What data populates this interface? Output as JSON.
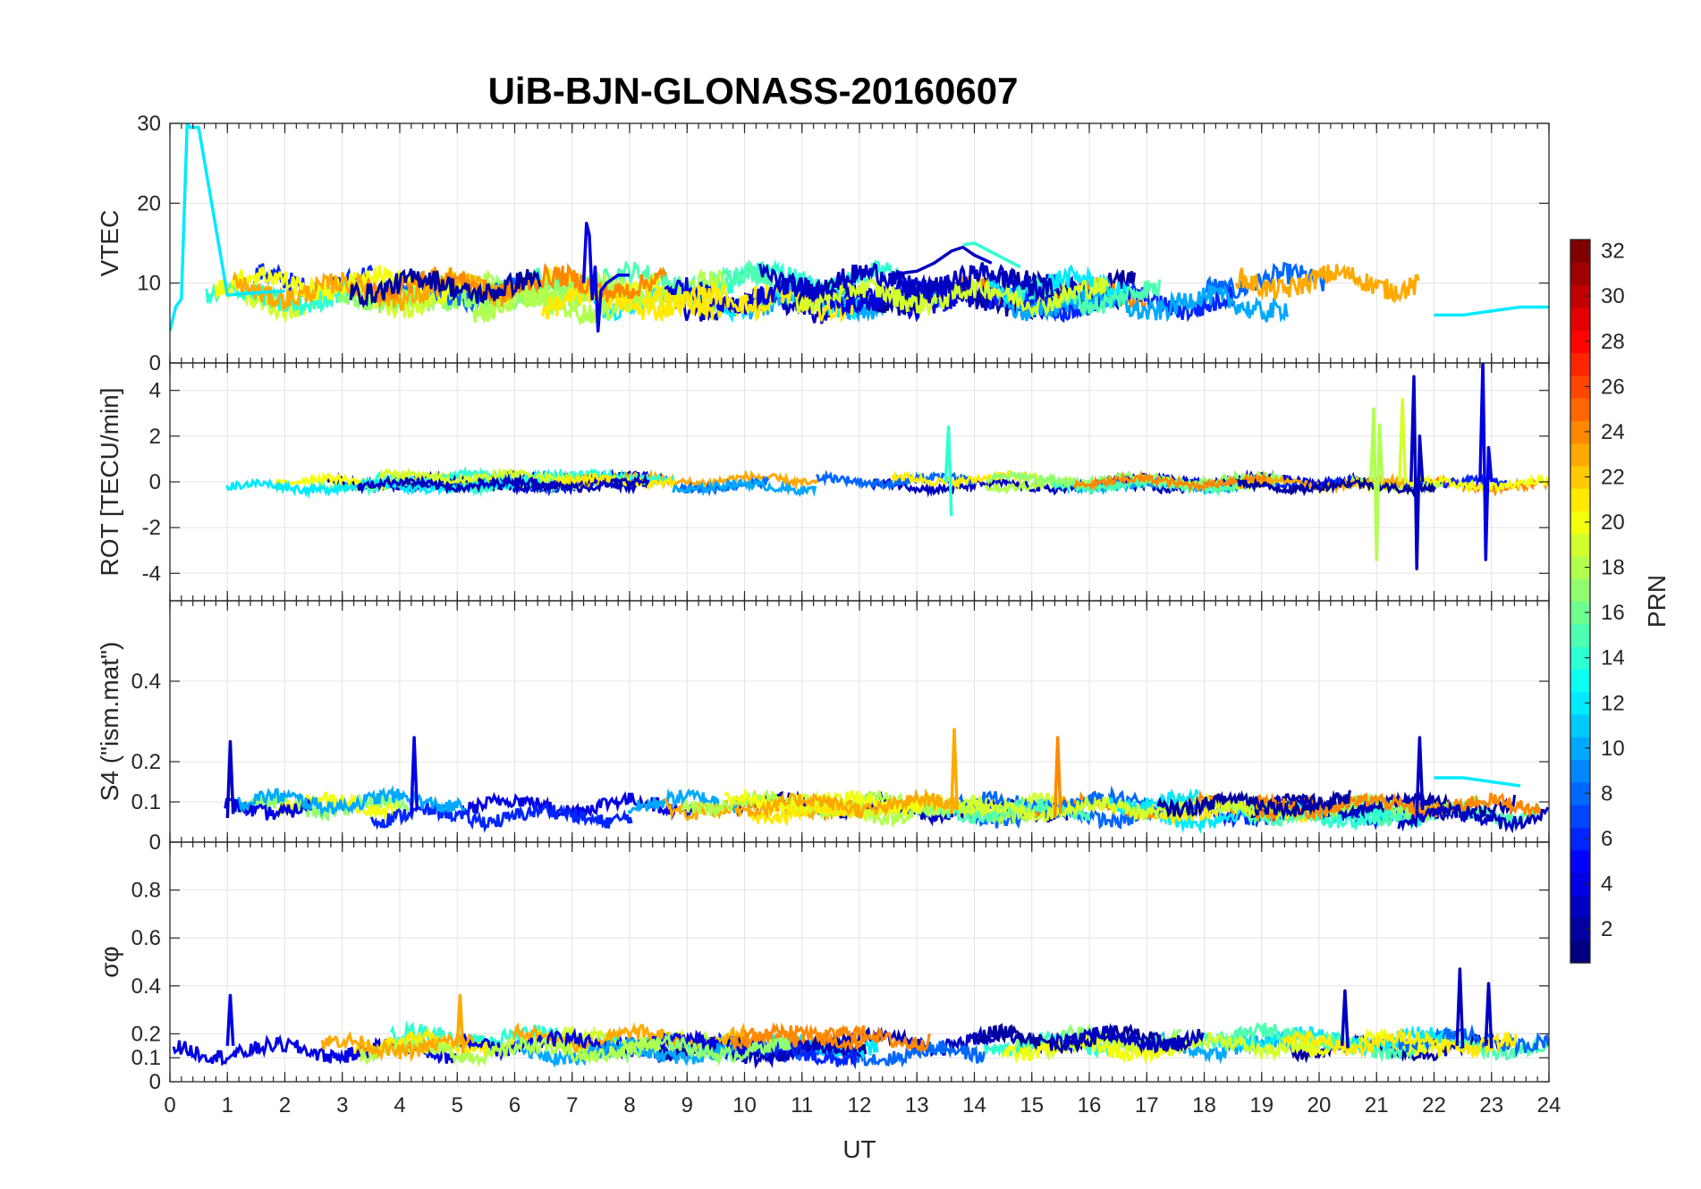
{
  "chart_data": {
    "type": "line",
    "title": "UiB-BJN-GLONASS-20160607",
    "xlabel": "UT",
    "xlim": [
      0,
      24
    ],
    "x_ticks": [
      "0",
      "1",
      "2",
      "3",
      "4",
      "5",
      "6",
      "7",
      "8",
      "9",
      "10",
      "11",
      "12",
      "13",
      "14",
      "15",
      "16",
      "17",
      "18",
      "19",
      "20",
      "21",
      "22",
      "23",
      "24"
    ],
    "grid": true,
    "colorbar": {
      "label": "PRN",
      "range": [
        1,
        32
      ],
      "ticks": [
        "2",
        "4",
        "6",
        "8",
        "10",
        "12",
        "14",
        "16",
        "18",
        "20",
        "22",
        "24",
        "26",
        "28",
        "30",
        "32"
      ],
      "colormap": "jet"
    },
    "panels": [
      {
        "id": "vtec",
        "ylabel": "VTEC",
        "ylim": [
          0,
          30
        ],
        "y_ticks": [
          "0",
          "10",
          "20",
          "30"
        ],
        "y_tick_values": [
          0,
          10,
          20,
          30
        ],
        "baseline_range": [
          6,
          12
        ],
        "series": [
          {
            "prn": 12,
            "x": [
              0,
              0.1,
              0.2,
              0.3,
              0.35,
              0.5,
              1,
              1.5,
              2
            ],
            "y": [
              4,
              7,
              8,
              30,
              29.5,
              29.5,
              8.5,
              8.8,
              9
            ]
          },
          {
            "prn": 4,
            "x": [
              7.2,
              7.25,
              7.3,
              7.35,
              7.4,
              7.45,
              7.5,
              7.6,
              7.8,
              8.0
            ],
            "y": [
              10,
              17.5,
              16,
              8,
              12,
              4,
              9,
              10,
              11,
              11
            ]
          },
          {
            "prn": 3,
            "x": [
              12.5,
              13,
              13.3,
              13.6,
              13.8,
              14.0,
              14.3
            ],
            "y": [
              11,
              11.5,
              12.5,
              14,
              14.5,
              13.5,
              12.5
            ]
          },
          {
            "prn": 14,
            "x": [
              13.8,
              14.0,
              14.4,
              14.8
            ],
            "y": [
              14.8,
              15,
              13.5,
              12
            ]
          },
          {
            "prn": 12,
            "x": [
              22,
              22.5,
              23,
              23.5,
              24
            ],
            "y": [
              6,
              6,
              6.5,
              7,
              7
            ]
          }
        ]
      },
      {
        "id": "rot",
        "ylabel": "ROT [TECU/min]",
        "ylim": [
          -5.2,
          5.2
        ],
        "y_ticks": [
          "-4",
          "-2",
          "0",
          "2",
          "4"
        ],
        "y_tick_values": [
          -4,
          -2,
          0,
          2,
          4
        ],
        "baseline_range": [
          -0.4,
          0.4
        ],
        "series": [
          {
            "prn": 3,
            "x": [
              21.6,
              21.65,
              21.7,
              21.75,
              21.8
            ],
            "y": [
              0,
              4.6,
              -3.8,
              2,
              0
            ]
          },
          {
            "prn": 4,
            "x": [
              22.8,
              22.85,
              22.9,
              22.95,
              23.0
            ],
            "y": [
              0,
              5.3,
              -3.4,
              1.5,
              0
            ]
          },
          {
            "prn": 18,
            "x": [
              20.9,
              20.95,
              21.0,
              21.05,
              21.1
            ],
            "y": [
              0,
              3.2,
              -3.4,
              2.5,
              0
            ]
          },
          {
            "prn": 19,
            "x": [
              21.4,
              21.45,
              21.5
            ],
            "y": [
              0,
              3.6,
              0
            ]
          },
          {
            "prn": 14,
            "x": [
              13.5,
              13.55,
              13.6
            ],
            "y": [
              0,
              2.4,
              -1.5
            ]
          }
        ]
      },
      {
        "id": "s4",
        "ylabel": "S4 (\"ism.mat\")",
        "ylim": [
          0,
          0.6
        ],
        "y_ticks": [
          "0",
          "0.1",
          "0.2",
          "0.4"
        ],
        "y_tick_values": [
          0,
          0.1,
          0.2,
          0.4
        ],
        "baseline_range": [
          0.04,
          0.12
        ],
        "series": [
          {
            "prn": 3,
            "x": [
              1.0,
              1.05,
              1.1
            ],
            "y": [
              0.06,
              0.25,
              0.07
            ]
          },
          {
            "prn": 4,
            "x": [
              4.2,
              4.25,
              4.3
            ],
            "y": [
              0.07,
              0.26,
              0.08
            ]
          },
          {
            "prn": 23,
            "x": [
              13.6,
              13.65,
              13.7
            ],
            "y": [
              0.07,
              0.28,
              0.08
            ]
          },
          {
            "prn": 24,
            "x": [
              15.4,
              15.45,
              15.5
            ],
            "y": [
              0.06,
              0.26,
              0.07
            ]
          },
          {
            "prn": 3,
            "x": [
              21.7,
              21.75,
              21.8
            ],
            "y": [
              0.07,
              0.26,
              0.08
            ]
          },
          {
            "prn": 12,
            "x": [
              22.0,
              22.5,
              23.0,
              23.5
            ],
            "y": [
              0.16,
              0.16,
              0.15,
              0.14
            ]
          }
        ]
      },
      {
        "id": "sigma",
        "ylabel": "σφ",
        "ylim": [
          0,
          1
        ],
        "y_ticks": [
          "0",
          "0.1",
          "0.2",
          "0.4",
          "0.6",
          "0.8"
        ],
        "y_tick_values": [
          0,
          0.1,
          0.2,
          0.4,
          0.6,
          0.8
        ],
        "baseline_range": [
          0.08,
          0.22
        ],
        "series": [
          {
            "prn": 4,
            "x": [
              1.0,
              1.05,
              1.1
            ],
            "y": [
              0.15,
              0.36,
              0.15
            ]
          },
          {
            "prn": 23,
            "x": [
              5.0,
              5.05,
              5.1
            ],
            "y": [
              0.15,
              0.36,
              0.12
            ]
          },
          {
            "prn": 3,
            "x": [
              22.4,
              22.45,
              22.5
            ],
            "y": [
              0.15,
              0.47,
              0.14
            ]
          },
          {
            "prn": 3,
            "x": [
              22.9,
              22.95,
              23.0
            ],
            "y": [
              0.15,
              0.41,
              0.14
            ]
          },
          {
            "prn": 3,
            "x": [
              20.4,
              20.45,
              20.5
            ],
            "y": [
              0.15,
              0.38,
              0.14
            ]
          }
        ]
      }
    ]
  }
}
